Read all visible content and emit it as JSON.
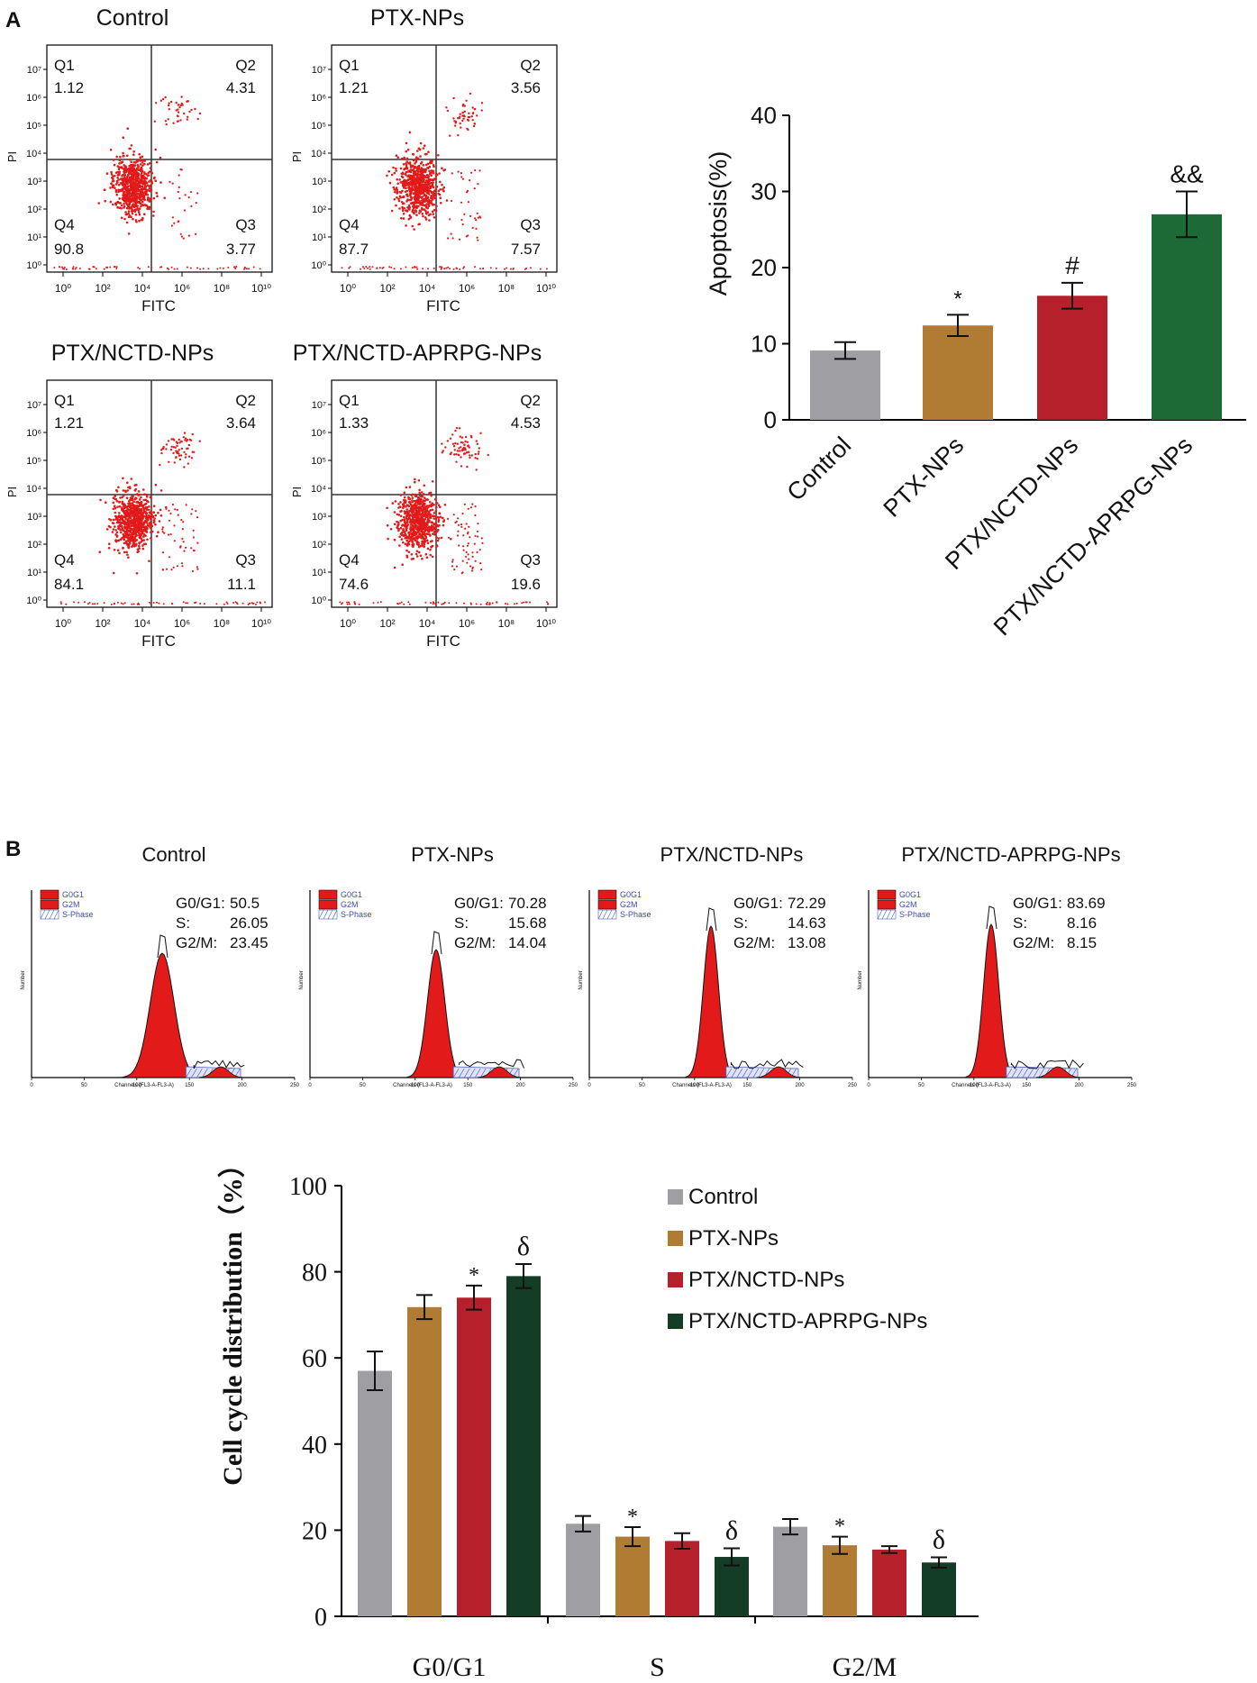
{
  "panel_a_label": "A",
  "panel_b_label": "B",
  "flow_axis": {
    "xlabel": "FITC",
    "ylabel": "PI",
    "xticks": [
      "10⁰",
      "10²",
      "10⁴",
      "10⁶",
      "10⁸",
      "10¹⁰"
    ],
    "yticks": [
      "10⁰",
      "10¹",
      "10²",
      "10³",
      "10⁴",
      "10⁵",
      "10⁶",
      "10⁷"
    ],
    "quadrant_names": [
      "Q1",
      "Q2",
      "Q3",
      "Q4"
    ]
  },
  "flow_plots": [
    {
      "title": "Control",
      "q1": "1.12",
      "q2": "4.31",
      "q3": "3.77",
      "q4": "90.8"
    },
    {
      "title": "PTX-NPs",
      "q1": "1.21",
      "q2": "3.56",
      "q3": "7.57",
      "q4": "87.7"
    },
    {
      "title": "PTX/NCTD-NPs",
      "q1": "1.21",
      "q2": "3.64",
      "q3": "11.1",
      "q4": "84.1"
    },
    {
      "title": "PTX/NCTD-APRPG-NPs",
      "q1": "1.33",
      "q2": "4.53",
      "q3": "19.6",
      "q4": "74.6"
    }
  ],
  "histograms": [
    {
      "title": "Control",
      "g0g1": "G0/G1:",
      "g0g1_val": "50.5",
      "s": "S:",
      "s_val": "26.05",
      "g2m": "G2/M:",
      "g2m_val": "23.45"
    },
    {
      "title": "PTX-NPs",
      "g0g1": "G0/G1:",
      "g0g1_val": "70.28",
      "s": "S:",
      "s_val": "15.68",
      "g2m": "G2/M:",
      "g2m_val": "14.04"
    },
    {
      "title": "PTX/NCTD-NPs",
      "g0g1": "G0/G1:",
      "g0g1_val": "72.29",
      "s": "S:",
      "s_val": "14.63",
      "g2m": "G2/M:",
      "g2m_val": "13.08"
    },
    {
      "title": "PTX/NCTD-APRPG-NPs",
      "g0g1": "G0/G1:",
      "g0g1_val": "83.69",
      "s": "S:",
      "s_val": "8.16",
      "g2m": "G2/M:",
      "g2m_val": "8.15"
    }
  ],
  "histogram_legend": [
    "G0G1",
    "G2M",
    "S-Phase"
  ],
  "histogram_axis": {
    "ylabel": "Number",
    "xlabel": "Channels (FL3-A-FL3-A)",
    "xticks": [
      "0",
      "50",
      "100",
      "150",
      "200",
      "250"
    ]
  },
  "colors": {
    "control": "#9e9ea3",
    "ptx": "#b07c34",
    "nctd": "#b5202b",
    "aprpg": "#1d6a36",
    "aprpg_b": "#133d24",
    "dots": "#e21a1a"
  },
  "chart_data": [
    {
      "type": "bar",
      "title": "",
      "xlabel": "",
      "ylabel": "Apoptosis(%)",
      "categories": [
        "Control",
        "PTX-NPs",
        "PTX/NCTD-NPs",
        "PTX/NCTD-APRPG-NPs"
      ],
      "values": [
        9.1,
        12.4,
        16.3,
        27.0
      ],
      "errors": [
        1.1,
        1.4,
        1.7,
        3.0
      ],
      "annotations": [
        "",
        "*",
        "#",
        "&&"
      ],
      "ylim": [
        0,
        40
      ],
      "yticks": [
        "0",
        "10",
        "20",
        "30",
        "40"
      ]
    },
    {
      "type": "bar",
      "title": "",
      "xlabel": "",
      "ylabel": "Cell cycle distribution（%）",
      "categories": [
        "G0/G1",
        "S",
        "G2/M"
      ],
      "series": [
        {
          "name": "Control",
          "values": [
            57.0,
            21.5,
            20.8
          ],
          "errors": [
            4.5,
            1.8,
            1.8
          ],
          "marks": [
            "",
            "",
            ""
          ]
        },
        {
          "name": "PTX-NPs",
          "values": [
            71.8,
            18.5,
            16.5
          ],
          "errors": [
            2.8,
            2.2,
            2.0
          ],
          "marks": [
            "",
            "*",
            "*"
          ]
        },
        {
          "name": "PTX/NCTD-NPs",
          "values": [
            74.0,
            17.5,
            15.5
          ],
          "errors": [
            2.8,
            1.8,
            0.8
          ],
          "marks": [
            "*",
            "",
            ""
          ]
        },
        {
          "name": "PTX/NCTD-APRPG-NPs",
          "values": [
            79.0,
            13.8,
            12.5
          ],
          "errors": [
            2.8,
            2.0,
            1.2
          ],
          "marks": [
            "δ",
            "δ",
            "δ"
          ]
        }
      ],
      "ylim": [
        0,
        100
      ],
      "yticks": [
        "0",
        "20",
        "40",
        "60",
        "80",
        "100"
      ]
    }
  ]
}
